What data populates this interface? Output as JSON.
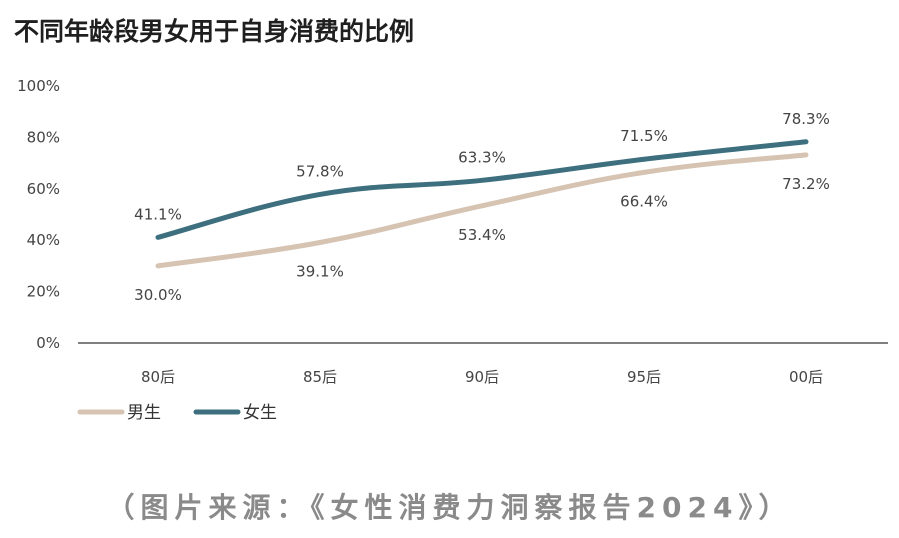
{
  "chart_data": {
    "type": "line",
    "title": "不同年龄段男女用于自身消费的比例",
    "categories": [
      "80后",
      "85后",
      "90后",
      "95后",
      "00后"
    ],
    "series": [
      {
        "name": "男生",
        "color": "#d6c3b2",
        "values": [
          30.0,
          39.1,
          53.4,
          66.4,
          73.2
        ],
        "labels": [
          "30.0%",
          "39.1%",
          "53.4%",
          "66.4%",
          "73.2%"
        ]
      },
      {
        "name": "女生",
        "color": "#3d6f7f",
        "values": [
          41.1,
          57.8,
          63.3,
          71.5,
          78.3
        ],
        "labels": [
          "41.1%",
          "57.8%",
          "63.3%",
          "71.5%",
          "78.3%"
        ]
      }
    ],
    "yticks": [
      0,
      20,
      40,
      60,
      80,
      100
    ],
    "ytick_labels": [
      "0%",
      "20%",
      "40%",
      "60%",
      "80%",
      "100%"
    ],
    "ylim": [
      0,
      100
    ],
    "grid": false,
    "legend_position": "bottom-left"
  },
  "source": "（图片来源：《女性消费力洞察报告2024》）"
}
